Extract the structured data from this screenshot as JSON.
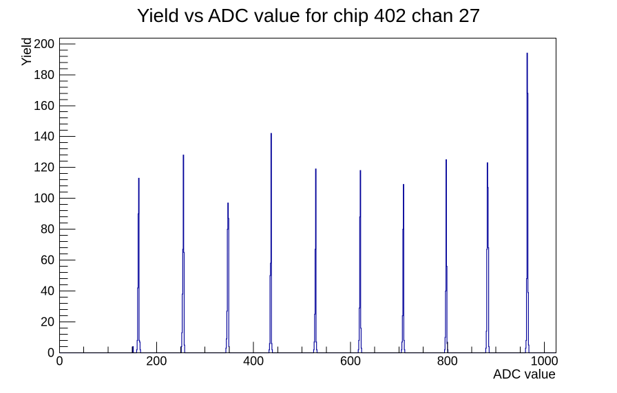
{
  "title": "Yield vs ADC value for chip 402 chan 27",
  "chart_data": {
    "type": "bar",
    "title": "Yield vs ADC value for chip 402 chan 27",
    "xlabel": "ADC value",
    "ylabel": "Yield",
    "xlim": [
      0,
      1024
    ],
    "ylim": [
      0,
      203.7
    ],
    "x_major_ticks": [
      0,
      200,
      400,
      600,
      800,
      1000
    ],
    "x_minor_step": 50,
    "y_major_ticks": [
      0,
      20,
      40,
      60,
      80,
      100,
      120,
      140,
      160,
      180,
      200
    ],
    "y_minor_step": 4,
    "grid": false,
    "legend": false,
    "line_color": "#000099",
    "frame_color": "#000000",
    "bin_width": 1,
    "peaks": [
      {
        "adc": 163,
        "yield": 113
      },
      {
        "adc": 255,
        "yield": 128
      },
      {
        "adc": 347,
        "yield": 97
      },
      {
        "adc": 436,
        "yield": 142
      },
      {
        "adc": 528,
        "yield": 119
      },
      {
        "adc": 620,
        "yield": 118
      },
      {
        "adc": 709,
        "yield": 109
      },
      {
        "adc": 797,
        "yield": 125
      },
      {
        "adc": 882,
        "yield": 123
      },
      {
        "adc": 964,
        "yield": 194
      }
    ],
    "bins": [
      [
        151,
        4
      ],
      [
        159,
        2
      ],
      [
        160,
        8
      ],
      [
        161,
        42
      ],
      [
        162,
        90
      ],
      [
        163,
        113
      ],
      [
        164,
        8
      ],
      [
        165,
        7
      ],
      [
        166,
        2
      ],
      [
        251,
        4
      ],
      [
        252,
        13
      ],
      [
        253,
        38
      ],
      [
        254,
        67
      ],
      [
        255,
        128
      ],
      [
        256,
        65
      ],
      [
        257,
        5
      ],
      [
        343,
        3
      ],
      [
        344,
        9
      ],
      [
        345,
        27
      ],
      [
        346,
        80
      ],
      [
        347,
        97
      ],
      [
        348,
        87
      ],
      [
        349,
        4
      ],
      [
        432,
        2
      ],
      [
        433,
        6
      ],
      [
        434,
        50
      ],
      [
        435,
        58
      ],
      [
        436,
        142
      ],
      [
        437,
        6
      ],
      [
        438,
        2
      ],
      [
        524,
        2
      ],
      [
        525,
        7
      ],
      [
        526,
        25
      ],
      [
        527,
        67
      ],
      [
        528,
        119
      ],
      [
        529,
        7
      ],
      [
        530,
        2
      ],
      [
        616,
        2
      ],
      [
        617,
        8
      ],
      [
        618,
        29
      ],
      [
        619,
        88
      ],
      [
        620,
        118
      ],
      [
        621,
        16
      ],
      [
        622,
        3
      ],
      [
        705,
        2
      ],
      [
        706,
        7
      ],
      [
        707,
        24
      ],
      [
        708,
        80
      ],
      [
        709,
        109
      ],
      [
        710,
        8
      ],
      [
        711,
        2
      ],
      [
        794,
        2
      ],
      [
        795,
        10
      ],
      [
        796,
        40
      ],
      [
        797,
        125
      ],
      [
        798,
        56
      ],
      [
        799,
        6
      ],
      [
        800,
        2
      ],
      [
        879,
        3
      ],
      [
        880,
        14
      ],
      [
        881,
        67
      ],
      [
        882,
        123
      ],
      [
        883,
        107
      ],
      [
        884,
        68
      ],
      [
        885,
        4
      ],
      [
        961,
        3
      ],
      [
        962,
        8
      ],
      [
        963,
        48
      ],
      [
        964,
        194
      ],
      [
        965,
        168
      ],
      [
        966,
        39
      ],
      [
        967,
        5
      ]
    ]
  }
}
